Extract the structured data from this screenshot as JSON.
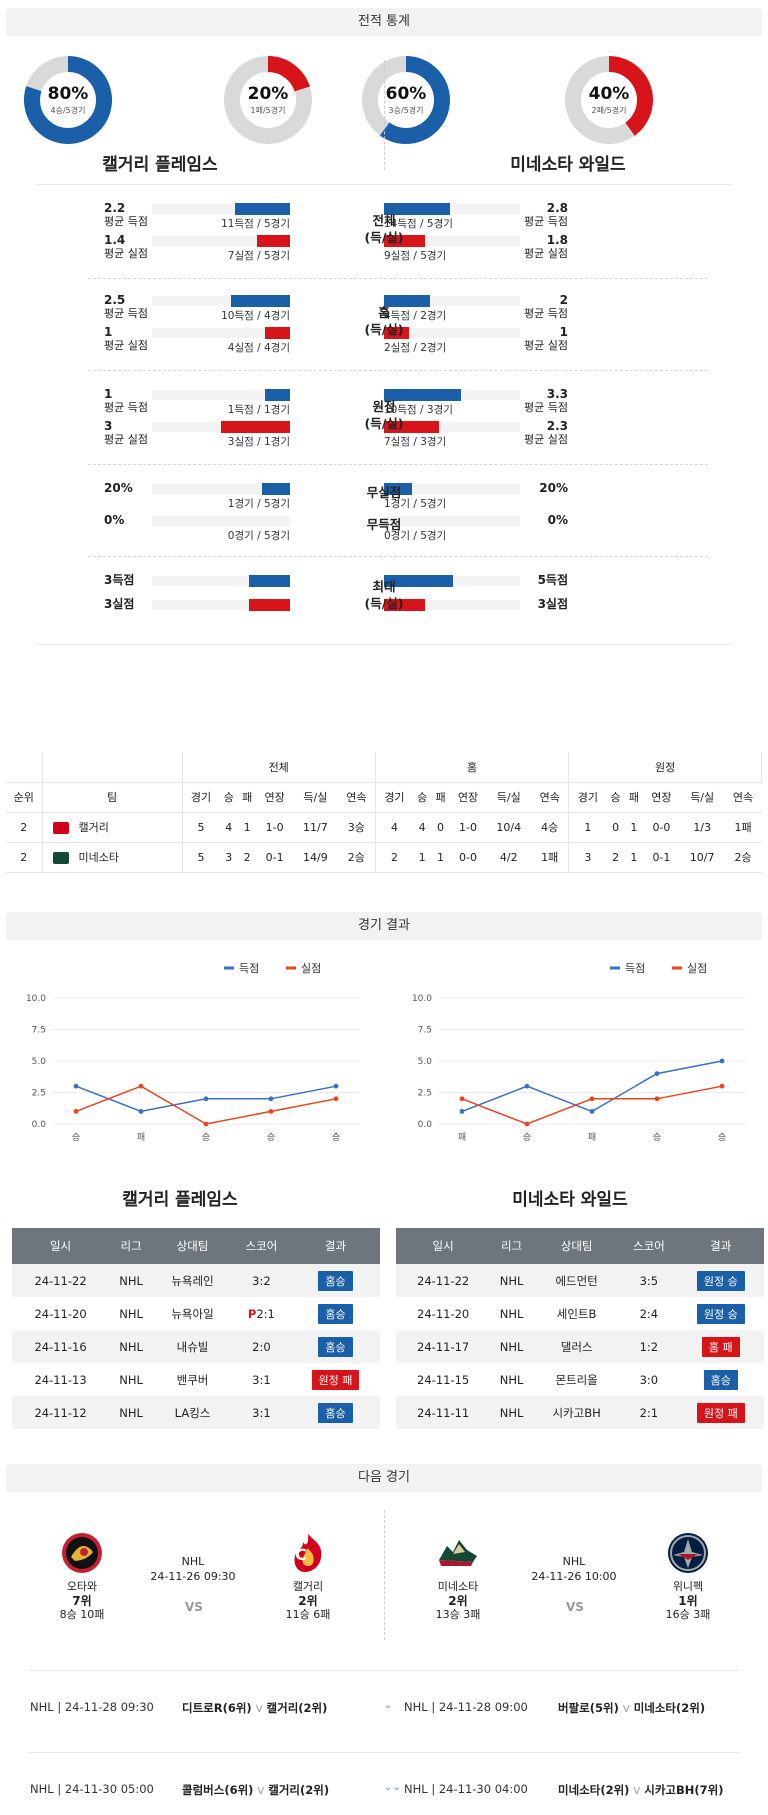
{
  "sections": {
    "stats": "전적 통계",
    "results": "경기 결과",
    "next": "다음 경기"
  },
  "donuts": [
    {
      "pct_label": "80%",
      "sub": "4승/5경기",
      "value": 0.8,
      "color": "#1a5fa8"
    },
    {
      "pct_label": "20%",
      "sub": "1패/5경기",
      "value": 0.2,
      "color": "#d8141b"
    },
    {
      "pct_label": "60%",
      "sub": "3승/5경기",
      "value": 0.6,
      "color": "#1a5fa8"
    },
    {
      "pct_label": "40%",
      "sub": "2패/5경기",
      "value": 0.4,
      "color": "#d8141b"
    }
  ],
  "team_left": "캘거리 플레임스",
  "team_right": "미네소타 와일드",
  "stat_groups": [
    {
      "label": "전체\n(득/실)",
      "rows": [
        {
          "lv": "2.2",
          "lcap": "평균 득점",
          "lsub": "11득점 / 5경기",
          "lfrac": 0.4,
          "color": "blue",
          "rv": "2.8",
          "rcap": "평균 득점",
          "rsub": "14득점 / 5경기",
          "rfrac": 0.48
        },
        {
          "lv": "1.4",
          "lcap": "평균 실점",
          "lsub": "7실점 / 5경기",
          "lfrac": 0.24,
          "color": "red",
          "rv": "1.8",
          "rcap": "평균 실점",
          "rsub": "9실점 / 5경기",
          "rfrac": 0.3
        }
      ]
    },
    {
      "label": "홈\n(득/실)",
      "rows": [
        {
          "lv": "2.5",
          "lcap": "평균 득점",
          "lsub": "10득점 / 4경기",
          "lfrac": 0.43,
          "color": "blue",
          "rv": "2",
          "rcap": "평균 득점",
          "rsub": "4득점 / 2경기",
          "rfrac": 0.33
        },
        {
          "lv": "1",
          "lcap": "평균 실점",
          "lsub": "4실점 / 4경기",
          "lfrac": 0.18,
          "color": "red",
          "rv": "1",
          "rcap": "평균 실점",
          "rsub": "2실점 / 2경기",
          "rfrac": 0.18
        }
      ]
    },
    {
      "label": "원정\n(득/실)",
      "rows": [
        {
          "lv": "1",
          "lcap": "평균 득점",
          "lsub": "1득점 / 1경기",
          "lfrac": 0.18,
          "color": "blue",
          "rv": "3.3",
          "rcap": "평균 득점",
          "rsub": "10득점 / 3경기",
          "rfrac": 0.56
        },
        {
          "lv": "3",
          "lcap": "평균 실점",
          "lsub": "3실점 / 1경기",
          "lfrac": 0.5,
          "color": "red",
          "rv": "2.3",
          "rcap": "평균 실점",
          "rsub": "7실점 / 3경기",
          "rfrac": 0.4
        }
      ]
    }
  ],
  "pct_rows": [
    {
      "label": "무실점",
      "lv": "20%",
      "lsub": "1경기 / 5경기",
      "lfrac": 0.2,
      "rv": "20%",
      "rsub": "1경기 / 5경기",
      "rfrac": 0.2
    },
    {
      "label": "무득점",
      "lv": "0%",
      "lsub": "0경기 / 5경기",
      "lfrac": 0,
      "rv": "0%",
      "rsub": "0경기 / 5경기",
      "rfrac": 0
    }
  ],
  "max_group": {
    "label": "최대\n(득/실)",
    "rows": [
      {
        "lv": "3득점",
        "lfrac": 0.3,
        "color": "blue",
        "rv": "5득점",
        "rfrac": 0.5
      },
      {
        "lv": "3실점",
        "lfrac": 0.3,
        "color": "red",
        "rv": "3실점",
        "rfrac": 0.3
      }
    ]
  },
  "standings": {
    "groups": [
      "전체",
      "홈",
      "원정"
    ],
    "cols": [
      "순위",
      "팀",
      "경기",
      "승",
      "패",
      "연장",
      "득/실",
      "연속",
      "경기",
      "승",
      "패",
      "연장",
      "득/실",
      "연속",
      "경기",
      "승",
      "패",
      "연장",
      "득/실",
      "연속"
    ],
    "rows": [
      [
        "2",
        "캘거리",
        "5",
        "4",
        "1",
        "1-0",
        "11/7",
        "3승",
        "4",
        "4",
        "0",
        "1-0",
        "10/4",
        "4승",
        "1",
        "0",
        "1",
        "0-0",
        "1/3",
        "1패"
      ],
      [
        "2",
        "미네소타",
        "5",
        "3",
        "2",
        "0-1",
        "14/9",
        "2승",
        "2",
        "1",
        "1",
        "0-0",
        "4/2",
        "1패",
        "3",
        "2",
        "1",
        "0-1",
        "10/7",
        "2승"
      ]
    ]
  },
  "chart_data": [
    {
      "type": "line",
      "x": [
        "승",
        "패",
        "승",
        "승",
        "승"
      ],
      "ylim": [
        0,
        10
      ],
      "yticks": [
        "0.0",
        "2.5",
        "5.0",
        "7.5",
        "10.0"
      ],
      "series": [
        {
          "name": "득점",
          "color": "#3a6fc4",
          "values": [
            3,
            1,
            2,
            2,
            3
          ]
        },
        {
          "name": "실점",
          "color": "#e8451e",
          "values": [
            1,
            3,
            0,
            1,
            2
          ]
        }
      ]
    },
    {
      "type": "line",
      "x": [
        "패",
        "승",
        "패",
        "승",
        "승"
      ],
      "ylim": [
        0,
        10
      ],
      "yticks": [
        "0.0",
        "2.5",
        "5.0",
        "7.5",
        "10.0"
      ],
      "series": [
        {
          "name": "득점",
          "color": "#3a6fc4",
          "values": [
            1,
            3,
            1,
            4,
            5
          ]
        },
        {
          "name": "실점",
          "color": "#e8451e",
          "values": [
            2,
            0,
            2,
            2,
            3
          ]
        }
      ]
    }
  ],
  "games_header": [
    "일시",
    "리그",
    "상대팀",
    "스코어",
    "결과"
  ],
  "games_left": [
    {
      "date": "24-11-22",
      "league": "NHL",
      "opp": "뉴욕레인",
      "score": "3:2",
      "pre": "",
      "result": "홈승",
      "win": true
    },
    {
      "date": "24-11-20",
      "league": "NHL",
      "opp": "뉴욕아일",
      "score": "2:1",
      "pre": "P",
      "result": "홈승",
      "win": true
    },
    {
      "date": "24-11-16",
      "league": "NHL",
      "opp": "내슈빌",
      "score": "2:0",
      "pre": "",
      "result": "홈승",
      "win": true
    },
    {
      "date": "24-11-13",
      "league": "NHL",
      "opp": "밴쿠버",
      "score": "3:1",
      "pre": "",
      "result": "원정 패",
      "win": false
    },
    {
      "date": "24-11-12",
      "league": "NHL",
      "opp": "LA킹스",
      "score": "3:1",
      "pre": "",
      "result": "홈승",
      "win": true
    }
  ],
  "games_right": [
    {
      "date": "24-11-22",
      "league": "NHL",
      "opp": "에드먼턴",
      "score": "3:5",
      "pre": "",
      "result": "원정 승",
      "win": true
    },
    {
      "date": "24-11-20",
      "league": "NHL",
      "opp": "세인트B",
      "score": "2:4",
      "pre": "",
      "result": "원정 승",
      "win": true
    },
    {
      "date": "24-11-17",
      "league": "NHL",
      "opp": "댈러스",
      "score": "1:2",
      "pre": "",
      "result": "홈 패",
      "win": false
    },
    {
      "date": "24-11-15",
      "league": "NHL",
      "opp": "몬트리올",
      "score": "3:0",
      "pre": "",
      "result": "홈승",
      "win": true
    },
    {
      "date": "24-11-11",
      "league": "NHL",
      "opp": "시카고BH",
      "score": "2:1",
      "pre": "",
      "result": "원정 패",
      "win": false
    }
  ],
  "next_games": [
    {
      "league": "NHL",
      "time": "24-11-26 09:30",
      "vs": "VS",
      "home": {
        "name": "오타와",
        "rank": "7위",
        "record": "8승 10패"
      },
      "away": {
        "name": "캘거리",
        "rank": "2위",
        "record": "11승 6패"
      }
    },
    {
      "league": "NHL",
      "time": "24-11-26 10:00",
      "vs": "VS",
      "home": {
        "name": "미네소타",
        "rank": "2위",
        "record": "13승 3패"
      },
      "away": {
        "name": "위니펙",
        "rank": "1위",
        "record": "16승 3패"
      }
    }
  ],
  "upcoming": [
    {
      "left": {
        "info": "NHL | 24-11-28 09:30",
        "t1": "디트로R(6위)",
        "t2": "캘거리(2위)"
      },
      "right": {
        "info": "NHL | 24-11-28 09:00",
        "t1": "버팔로(5위)",
        "t2": "미네소타(2위)"
      }
    },
    {
      "left": {
        "info": "NHL | 24-11-30 05:00",
        "t1": "콜럼버스(6위)",
        "t2": "캘거리(2위)"
      },
      "right": {
        "info": "NHL | 24-11-30 04:00",
        "t1": "미네소타(2위)",
        "t2": "시카고BH(7위)"
      }
    }
  ],
  "vmark": "V"
}
